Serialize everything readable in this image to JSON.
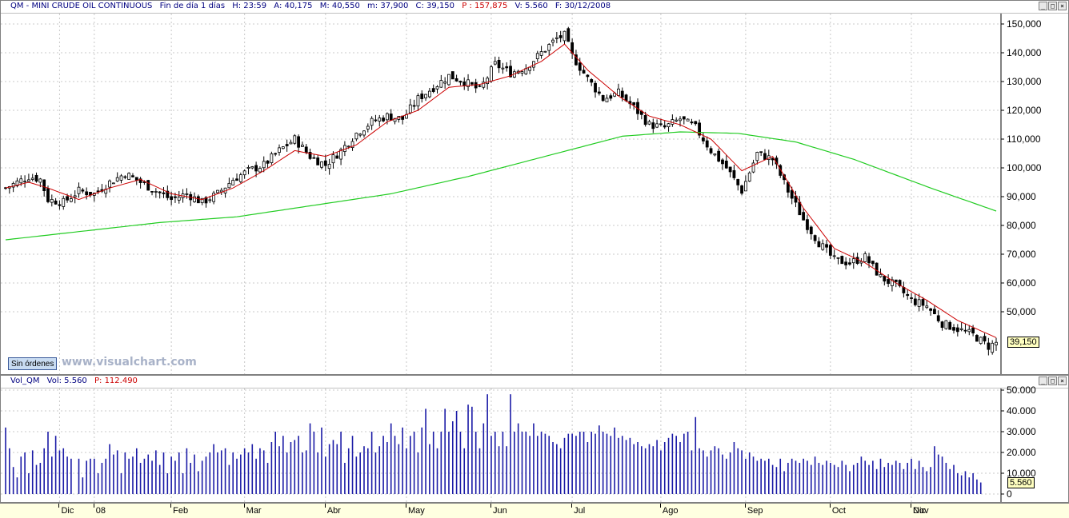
{
  "price_panel": {
    "header": {
      "symbol": "QM - MINI CRUDE OIL CONTINUOUS",
      "period": "Fin de día 1 días",
      "h": "H: 23:59",
      "a": "A: 40,175",
      "m_high": "M: 40,550",
      "m_low": "m: 37,900",
      "c": "C: 39,150",
      "p": "P : 157,875",
      "v": "V: 5.560",
      "f": "F: 30/12/2008"
    },
    "last_value_label": "39,150",
    "no_orders_button": "Sin órdenes",
    "watermark": "www.visualchart.com"
  },
  "volume_panel": {
    "header": {
      "name": "Vol_QM",
      "vol": "Vol: 5.560",
      "p": "P: 112.490"
    },
    "last_value_label": "5.560"
  },
  "colors": {
    "candle": "#000000",
    "ma_short": "#cc0000",
    "ma_long": "#22cc22",
    "volume_bars": "#1a1aa6",
    "header_text": "#000080",
    "header_red": "#cc0000"
  },
  "window_buttons": [
    "_",
    "□",
    "×"
  ],
  "chart_data": [
    {
      "type": "candlestick",
      "title": "QM - MINI CRUDE OIL CONTINUOUS",
      "ylim": [
        20,
        150
      ],
      "y_tick_labels": [
        "150,000",
        "140,000",
        "130,000",
        "120,000",
        "110,000",
        "100,000",
        "90,000",
        "80,000",
        "70,000",
        "60,000",
        "50,000"
      ],
      "y_ticks": [
        150,
        140,
        130,
        120,
        110,
        100,
        90,
        80,
        70,
        60,
        50
      ],
      "x_labels": [
        "Dic",
        "08",
        "Feb",
        "Mar",
        "Abr",
        "May",
        "Jun",
        "Jul",
        "Ago",
        "Sep",
        "Oct",
        "Nov",
        "Dic"
      ],
      "close_path": [
        [
          0,
          93
        ],
        [
          6,
          97
        ],
        [
          9,
          96
        ],
        [
          11,
          89
        ],
        [
          15,
          88
        ],
        [
          19,
          92
        ],
        [
          23,
          91
        ],
        [
          27,
          95
        ],
        [
          31,
          98
        ],
        [
          35,
          95
        ],
        [
          39,
          92
        ],
        [
          43,
          89
        ],
        [
          47,
          91
        ],
        [
          51,
          88
        ],
        [
          55,
          91
        ],
        [
          59,
          96
        ],
        [
          63,
          99
        ],
        [
          67,
          101
        ],
        [
          71,
          106
        ],
        [
          75,
          110
        ],
        [
          79,
          104
        ],
        [
          83,
          101
        ],
        [
          87,
          106
        ],
        [
          91,
          112
        ],
        [
          95,
          116
        ],
        [
          99,
          118
        ],
        [
          103,
          117
        ],
        [
          107,
          124
        ],
        [
          111,
          128
        ],
        [
          115,
          132
        ],
        [
          119,
          130
        ],
        [
          123,
          127
        ],
        [
          127,
          136
        ],
        [
          131,
          133
        ],
        [
          135,
          135
        ],
        [
          139,
          140
        ],
        [
          143,
          145
        ],
        [
          145,
          146
        ],
        [
          147,
          139
        ],
        [
          151,
          131
        ],
        [
          155,
          124
        ],
        [
          159,
          126
        ],
        [
          163,
          121
        ],
        [
          167,
          115
        ],
        [
          171,
          114
        ],
        [
          175,
          117
        ],
        [
          179,
          114
        ],
        [
          183,
          106
        ],
        [
          187,
          100
        ],
        [
          191,
          92
        ],
        [
          195,
          105
        ],
        [
          199,
          103
        ],
        [
          203,
          92
        ],
        [
          207,
          82
        ],
        [
          211,
          74
        ],
        [
          215,
          68
        ],
        [
          219,
          67
        ],
        [
          223,
          69
        ],
        [
          227,
          62
        ],
        [
          231,
          59
        ],
        [
          235,
          54
        ],
        [
          239,
          52
        ],
        [
          243,
          46
        ],
        [
          247,
          44
        ],
        [
          251,
          42
        ],
        [
          255,
          38
        ],
        [
          257,
          39.15
        ]
      ],
      "ma_short_path": [
        [
          0,
          93
        ],
        [
          6,
          95
        ],
        [
          11,
          93
        ],
        [
          19,
          89
        ],
        [
          27,
          93
        ],
        [
          35,
          96
        ],
        [
          43,
          91
        ],
        [
          51,
          89
        ],
        [
          59,
          93
        ],
        [
          67,
          99
        ],
        [
          75,
          106
        ],
        [
          83,
          104
        ],
        [
          91,
          108
        ],
        [
          99,
          116
        ],
        [
          107,
          120
        ],
        [
          115,
          128
        ],
        [
          123,
          129
        ],
        [
          131,
          132
        ],
        [
          139,
          137
        ],
        [
          145,
          143
        ],
        [
          151,
          134
        ],
        [
          159,
          125
        ],
        [
          167,
          118
        ],
        [
          175,
          115
        ],
        [
          183,
          110
        ],
        [
          191,
          99
        ],
        [
          199,
          104
        ],
        [
          207,
          86
        ],
        [
          215,
          72
        ],
        [
          223,
          67
        ],
        [
          231,
          60
        ],
        [
          239,
          54
        ],
        [
          247,
          47
        ],
        [
          257,
          41
        ]
      ],
      "ma_long_path": [
        [
          0,
          75
        ],
        [
          20,
          78
        ],
        [
          40,
          81
        ],
        [
          60,
          83
        ],
        [
          80,
          87
        ],
        [
          100,
          91
        ],
        [
          120,
          97
        ],
        [
          140,
          104
        ],
        [
          160,
          111
        ],
        [
          175,
          112.5
        ],
        [
          190,
          112
        ],
        [
          205,
          109
        ],
        [
          220,
          103
        ],
        [
          240,
          93
        ],
        [
          257,
          85
        ]
      ],
      "series": [
        {
          "name": "QM"
        },
        {
          "name": ""
        },
        {
          "name": ""
        }
      ]
    },
    {
      "type": "bar",
      "title": "Vol_QM",
      "ylim": [
        0,
        50
      ],
      "y_tick_labels": [
        "50.000",
        "40.000",
        "30.000",
        "20.000",
        "10.000",
        "0"
      ],
      "y_ticks": [
        50,
        40,
        30,
        20,
        10,
        0
      ],
      "values": [
        32,
        22,
        13,
        8,
        18,
        20,
        10,
        21,
        14,
        15,
        22,
        30,
        18,
        28,
        21,
        22,
        18,
        17,
        0,
        17,
        8,
        16,
        17,
        17,
        10,
        15,
        17,
        24,
        19,
        21,
        10,
        20,
        17,
        18,
        22,
        15,
        17,
        19,
        16,
        21,
        14,
        20,
        10,
        18,
        16,
        20,
        10,
        22,
        15,
        19,
        11,
        16,
        18,
        20,
        24,
        20,
        21,
        22,
        14,
        20,
        17,
        19,
        22,
        20,
        24,
        17,
        22,
        21,
        15,
        25,
        30,
        23,
        28,
        20,
        25,
        26,
        28,
        20,
        21,
        34,
        30,
        20,
        32,
        18,
        24,
        26,
        24,
        30,
        15,
        22,
        28,
        18,
        20,
        23,
        22,
        30,
        20,
        23,
        28,
        25,
        34,
        28,
        24,
        32,
        22,
        28,
        30,
        20,
        32,
        41,
        24,
        30,
        22,
        30,
        41,
        30,
        35,
        40,
        30,
        22,
        43,
        42,
        30,
        22,
        34,
        48,
        28,
        30,
        23,
        30,
        23,
        48,
        30,
        34,
        30,
        30,
        28,
        34,
        28,
        30,
        29,
        28,
        25,
        24,
        22,
        27,
        29,
        29,
        28,
        30,
        30,
        25,
        30,
        29,
        33,
        30,
        29,
        28,
        32,
        27,
        28,
        26,
        27,
        24,
        25,
        23,
        22,
        24,
        23,
        26,
        21,
        25,
        27,
        29,
        28,
        25,
        29,
        30,
        21,
        37,
        22,
        21,
        18,
        21,
        23,
        22,
        19,
        17,
        20,
        25,
        22,
        21,
        17,
        20,
        18,
        16,
        17,
        16,
        17,
        14,
        13,
        17,
        11,
        15,
        17,
        16,
        15,
        17,
        16,
        14,
        18,
        15,
        14,
        16,
        15,
        14,
        13,
        16,
        14,
        11,
        14,
        15,
        18,
        16,
        14,
        16,
        12,
        17,
        13,
        15,
        14,
        16,
        15,
        12,
        15,
        17,
        12,
        16,
        13,
        11,
        13,
        23,
        19,
        18,
        15,
        12,
        14,
        10,
        9,
        11,
        8,
        10,
        7,
        5.56
      ]
    }
  ]
}
